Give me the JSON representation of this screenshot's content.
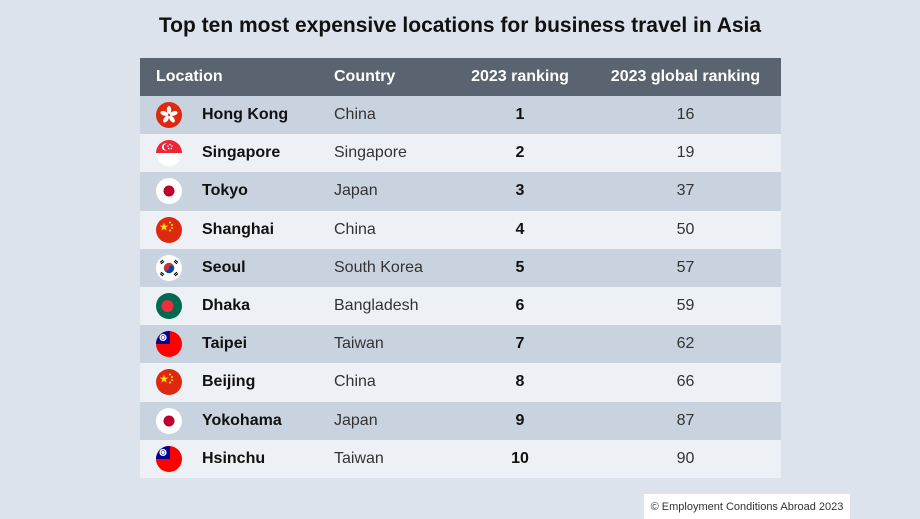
{
  "title": "Top ten most expensive locations for business travel in Asia",
  "footer": "© Employment Conditions Abroad 2023",
  "colors": {
    "header_bg": "#596470",
    "row_odd": "#c9d3e0",
    "row_even": "#edf0f5",
    "page_bg": "#dde3ec"
  },
  "chart_data": {
    "type": "table",
    "title": "Top ten most expensive locations for business travel in Asia",
    "columns": [
      "Location",
      "Country",
      "2023 ranking",
      "2023 global ranking"
    ],
    "rows": [
      {
        "location": "Hong Kong",
        "country": "China",
        "ranking": "1",
        "global": "16",
        "flag": "hong-kong-flag-icon"
      },
      {
        "location": "Singapore",
        "country": "Singapore",
        "ranking": "2",
        "global": "19",
        "flag": "singapore-flag-icon"
      },
      {
        "location": "Tokyo",
        "country": "Japan",
        "ranking": "3",
        "global": "37",
        "flag": "japan-flag-icon"
      },
      {
        "location": "Shanghai",
        "country": "China",
        "ranking": "4",
        "global": "50",
        "flag": "china-flag-icon"
      },
      {
        "location": "Seoul",
        "country": "South Korea",
        "ranking": "5",
        "global": "57",
        "flag": "south-korea-flag-icon"
      },
      {
        "location": "Dhaka",
        "country": "Bangladesh",
        "ranking": "6",
        "global": "59",
        "flag": "bangladesh-flag-icon"
      },
      {
        "location": "Taipei",
        "country": "Taiwan",
        "ranking": "7",
        "global": "62",
        "flag": "taiwan-flag-icon"
      },
      {
        "location": "Beijing",
        "country": "China",
        "ranking": "8",
        "global": "66",
        "flag": "china-flag-icon"
      },
      {
        "location": "Yokohama",
        "country": "Japan",
        "ranking": "9",
        "global": "87",
        "flag": "japan-flag-icon"
      },
      {
        "location": "Hsinchu",
        "country": "Taiwan",
        "ranking": "10",
        "global": "90",
        "flag": "taiwan-flag-icon"
      }
    ]
  }
}
